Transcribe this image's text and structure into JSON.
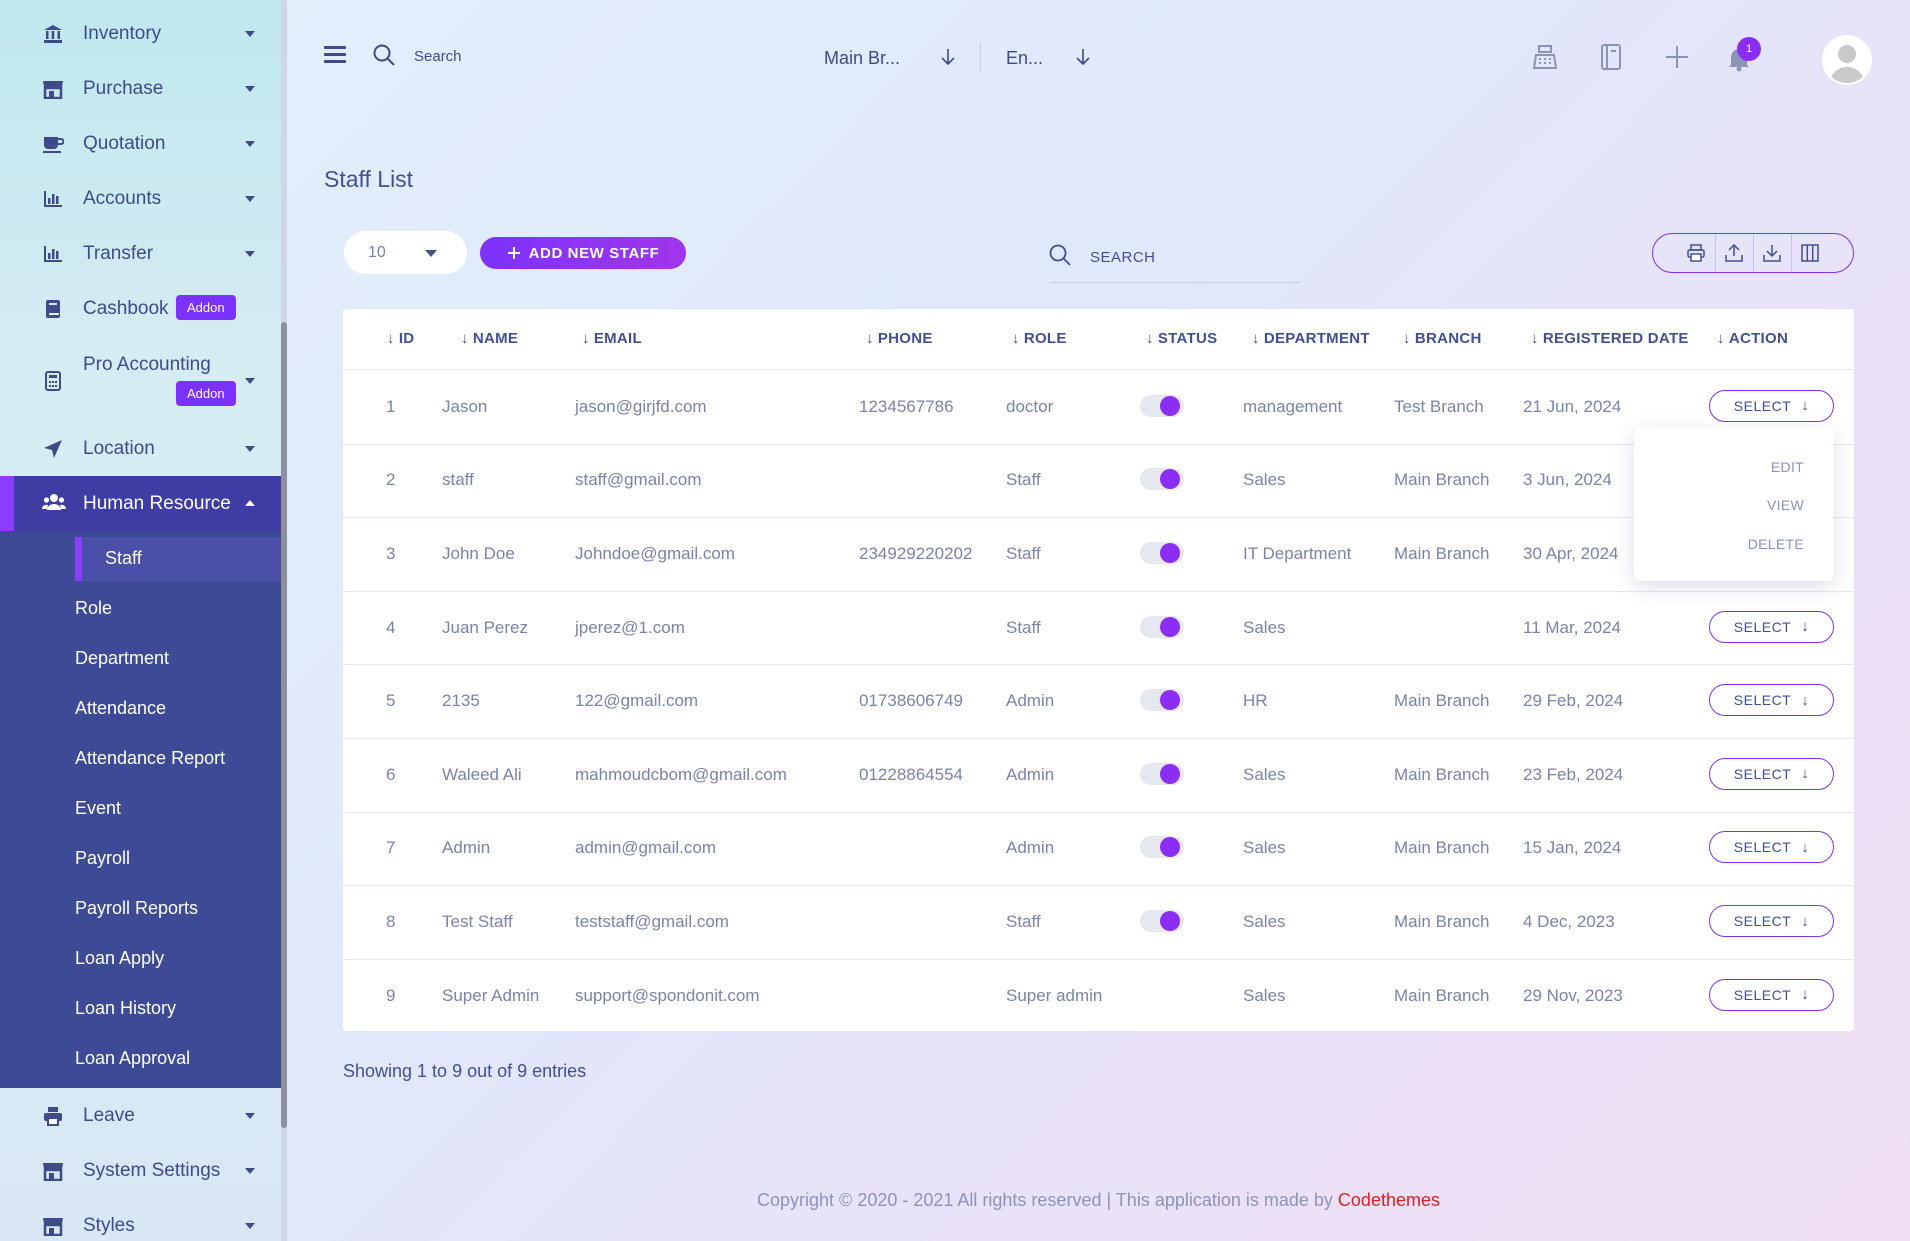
{
  "sidebar": {
    "items_top": [
      {
        "label": "Inventory",
        "icon": "bank-icon"
      },
      {
        "label": "Purchase",
        "icon": "store-icon"
      },
      {
        "label": "Quotation",
        "icon": "coffee-cup-icon"
      },
      {
        "label": "Accounts",
        "icon": "bar-chart-icon"
      },
      {
        "label": "Transfer",
        "icon": "bar-chart-icon"
      },
      {
        "label": "Cashbook",
        "icon": "book-icon",
        "addon": "Addon"
      },
      {
        "label": "Pro Accounting",
        "icon": "calculator-icon",
        "addon": "Addon"
      },
      {
        "label": "Location",
        "icon": "location-arrow-icon"
      }
    ],
    "active_group": {
      "label": "Human Resource",
      "icon": "users-icon"
    },
    "sub_items": [
      "Staff",
      "Role",
      "Department",
      "Attendance",
      "Attendance Report",
      "Event",
      "Payroll",
      "Payroll Reports",
      "Loan Apply",
      "Loan History",
      "Loan Approval"
    ],
    "active_sub": "Staff",
    "items_bottom": [
      {
        "label": "Leave",
        "icon": "printer-icon"
      },
      {
        "label": "System Settings",
        "icon": "store-icon"
      },
      {
        "label": "Styles",
        "icon": "store-icon"
      }
    ]
  },
  "header": {
    "search_label": "Search",
    "branch": "Main Br...",
    "language": "En...",
    "notification_count": "1"
  },
  "page": {
    "title": "Staff List",
    "per_page": "10",
    "add_button": "ADD NEW STAFF",
    "search_label": "SEARCH"
  },
  "table": {
    "columns": [
      "ID",
      "NAME",
      "EMAIL",
      "PHONE",
      "ROLE",
      "STATUS",
      "DEPARTMENT",
      "BRANCH",
      "REGISTERED DATE",
      "ACTION"
    ],
    "rows": [
      {
        "id": "1",
        "name": "Jason",
        "email": "jason@girjfd.com",
        "phone": "1234567786",
        "role": "doctor",
        "status": true,
        "department": "management",
        "branch": "Test Branch",
        "date": "21 Jun, 2024"
      },
      {
        "id": "2",
        "name": "staff",
        "email": "staff@gmail.com",
        "phone": "",
        "role": "Staff",
        "status": true,
        "department": "Sales",
        "branch": "Main Branch",
        "date": "3 Jun, 2024"
      },
      {
        "id": "3",
        "name": "John Doe",
        "email": "Johndoe@gmail.com",
        "phone": "234929220202",
        "role": "Staff",
        "status": true,
        "department": "IT Department",
        "branch": "Main Branch",
        "date": "30 Apr, 2024"
      },
      {
        "id": "4",
        "name": "Juan Perez",
        "email": "jperez@1.com",
        "phone": "",
        "role": "Staff",
        "status": true,
        "department": "Sales",
        "branch": "",
        "date": "11 Mar, 2024"
      },
      {
        "id": "5",
        "name": "2135",
        "email": "122@gmail.com",
        "phone": "01738606749",
        "role": "Admin",
        "status": true,
        "department": "HR",
        "branch": "Main Branch",
        "date": "29 Feb, 2024"
      },
      {
        "id": "6",
        "name": "Waleed Ali",
        "email": "mahmoudcbom@gmail.com",
        "phone": "01228864554",
        "role": "Admin",
        "status": true,
        "department": "Sales",
        "branch": "Main Branch",
        "date": "23 Feb, 2024"
      },
      {
        "id": "7",
        "name": "Admin",
        "email": "admin@gmail.com",
        "phone": "",
        "role": "Admin",
        "status": true,
        "department": "Sales",
        "branch": "Main Branch",
        "date": "15 Jan, 2024"
      },
      {
        "id": "8",
        "name": "Test Staff",
        "email": "teststaff@gmail.com",
        "phone": "",
        "role": "Staff",
        "status": true,
        "department": "Sales",
        "branch": "Main Branch",
        "date": "4 Dec, 2023"
      },
      {
        "id": "9",
        "name": "Super Admin",
        "email": "support@spondonit.com",
        "phone": "",
        "role": "Super admin",
        "status": false,
        "department": "Sales",
        "branch": "Main Branch",
        "date": "29 Nov, 2023"
      }
    ],
    "select_label": "SELECT",
    "dropdown": [
      "EDIT",
      "VIEW",
      "DELETE"
    ],
    "entries_text": "Showing 1 to 9 out of 9 entries"
  },
  "footer": {
    "text": "Copyright © 2020 - 2021 All rights reserved | This application is made by ",
    "brand": "Codethemes"
  },
  "colors": {
    "accent": "#7c32ff",
    "sidebar_active": "#3d4b96",
    "text": "#415094",
    "brand_red": "#e02020"
  }
}
